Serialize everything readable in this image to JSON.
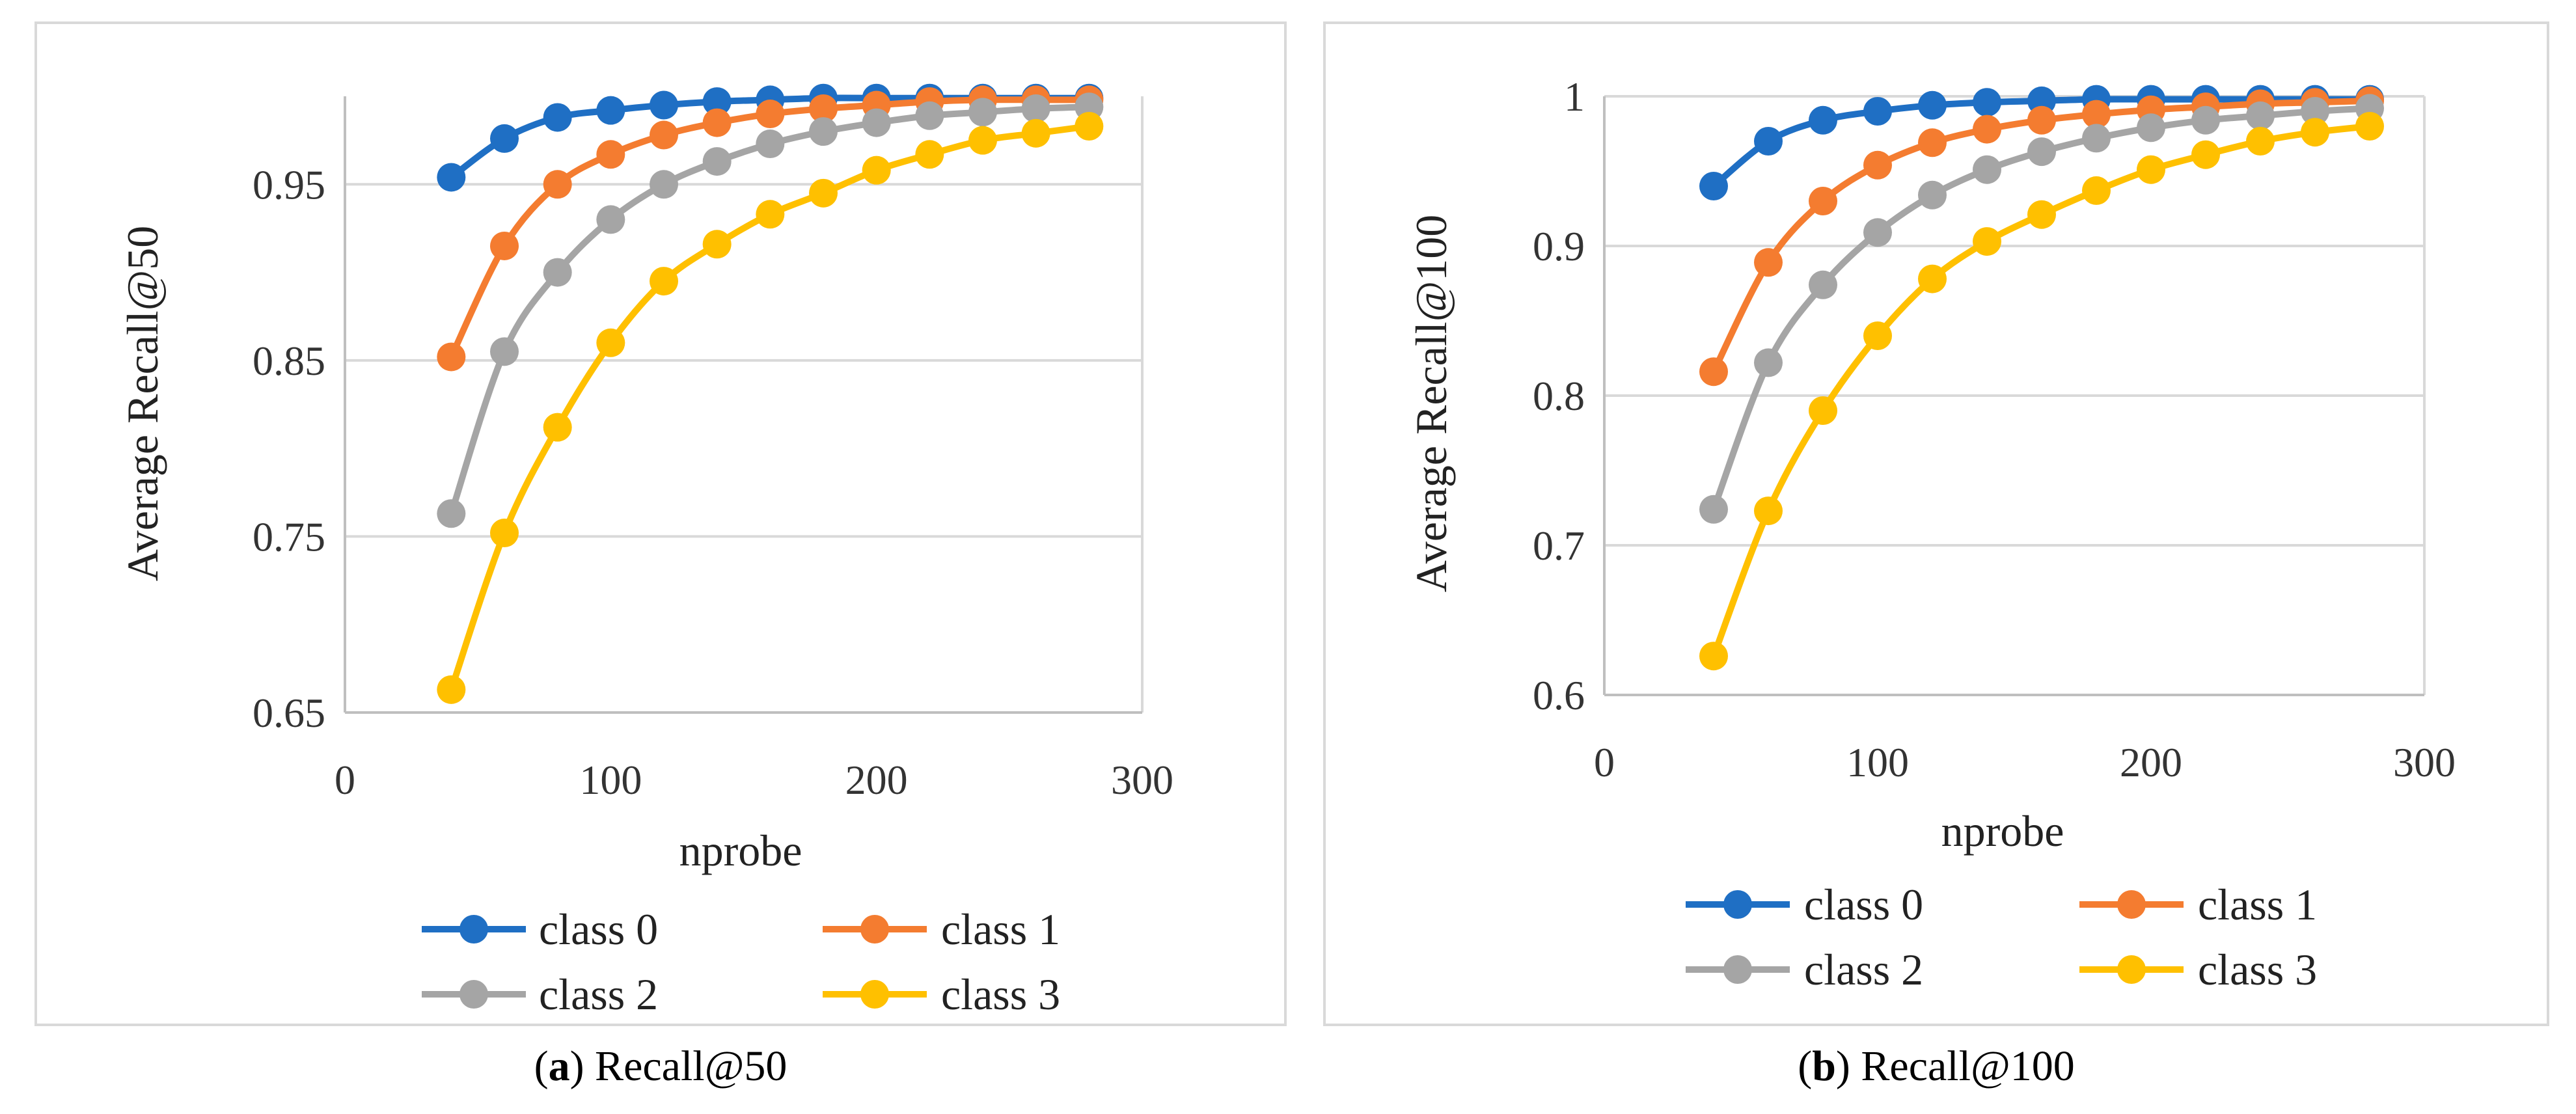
{
  "chart_data": [
    {
      "type": "line",
      "caption_letter": "a",
      "caption_text": "Recall@50",
      "xlabel": "nprobe",
      "ylabel": "Average Recall@50",
      "xlim": [
        0,
        300
      ],
      "ylim": [
        0.65,
        1.0
      ],
      "x_ticks": [
        0,
        100,
        200,
        300
      ],
      "x_tick_labels": [
        "0",
        "100",
        "200",
        "300"
      ],
      "y_ticks": [
        0.65,
        0.75,
        0.85,
        0.95
      ],
      "y_tick_labels": [
        "0.65",
        "0.75",
        "0.85",
        "0.95"
      ],
      "grid": true,
      "legend_position": "bottom",
      "x": [
        40,
        60,
        80,
        100,
        120,
        140,
        160,
        180,
        200,
        220,
        240,
        260,
        280
      ],
      "series": [
        {
          "name": "class 0",
          "color": "#1f6fc4",
          "values": [
            0.954,
            0.976,
            0.988,
            0.992,
            0.995,
            0.997,
            0.998,
            0.999,
            0.999,
            0.999,
            0.999,
            0.999,
            0.999
          ]
        },
        {
          "name": "class 1",
          "color": "#f47c30",
          "values": [
            0.852,
            0.915,
            0.95,
            0.967,
            0.978,
            0.985,
            0.99,
            0.993,
            0.995,
            0.997,
            0.998,
            0.998,
            0.998
          ]
        },
        {
          "name": "class 2",
          "color": "#a5a5a5",
          "values": [
            0.763,
            0.855,
            0.9,
            0.93,
            0.95,
            0.963,
            0.973,
            0.98,
            0.985,
            0.989,
            0.991,
            0.993,
            0.994
          ]
        },
        {
          "name": "class 3",
          "color": "#ffc000",
          "values": [
            0.663,
            0.752,
            0.812,
            0.86,
            0.895,
            0.916,
            0.933,
            0.945,
            0.958,
            0.967,
            0.975,
            0.979,
            0.983
          ]
        }
      ]
    },
    {
      "type": "line",
      "caption_letter": "b",
      "caption_text": "Recall@100",
      "xlabel": "nprobe",
      "ylabel": "Average Recall@100",
      "xlim": [
        0,
        300
      ],
      "ylim": [
        0.6,
        1.0
      ],
      "x_ticks": [
        0,
        100,
        200,
        300
      ],
      "x_tick_labels": [
        "0",
        "100",
        "200",
        "300"
      ],
      "y_ticks": [
        0.6,
        0.7,
        0.8,
        0.9,
        1.0
      ],
      "y_tick_labels": [
        "0.6",
        "0.7",
        "0.8",
        "0.9",
        "1"
      ],
      "grid": true,
      "legend_position": "bottom",
      "x": [
        40,
        60,
        80,
        100,
        120,
        140,
        160,
        180,
        200,
        220,
        240,
        260,
        280
      ],
      "series": [
        {
          "name": "class 0",
          "color": "#1f6fc4",
          "values": [
            0.94,
            0.97,
            0.984,
            0.99,
            0.994,
            0.996,
            0.997,
            0.998,
            0.998,
            0.998,
            0.998,
            0.998,
            0.998
          ]
        },
        {
          "name": "class 1",
          "color": "#f47c30",
          "values": [
            0.816,
            0.889,
            0.93,
            0.954,
            0.969,
            0.978,
            0.984,
            0.988,
            0.991,
            0.993,
            0.995,
            0.996,
            0.997
          ]
        },
        {
          "name": "class 2",
          "color": "#a5a5a5",
          "values": [
            0.724,
            0.822,
            0.874,
            0.909,
            0.934,
            0.951,
            0.963,
            0.972,
            0.979,
            0.984,
            0.987,
            0.99,
            0.992
          ]
        },
        {
          "name": "class 3",
          "color": "#ffc000",
          "values": [
            0.626,
            0.723,
            0.79,
            0.84,
            0.878,
            0.903,
            0.921,
            0.937,
            0.951,
            0.961,
            0.97,
            0.976,
            0.98
          ]
        }
      ]
    }
  ]
}
